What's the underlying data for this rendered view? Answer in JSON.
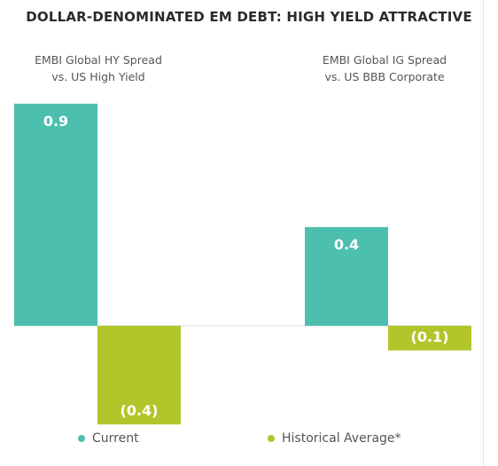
{
  "chart_data": {
    "type": "bar",
    "title": "DOLLAR-DENOMINATED EM DEBT: HIGH YIELD ATTRACTIVE",
    "categories": [
      "EMBI Global HY Spread\nvs. US High Yield",
      "EMBI Global IG Spread\nvs. US BBB Corporate"
    ],
    "series": [
      {
        "name": "Current",
        "values": [
          0.9,
          0.4
        ],
        "labels": [
          "0.9",
          "0.4"
        ],
        "color": "#4dbfae"
      },
      {
        "name": "Historical Average*",
        "values": [
          -0.4,
          -0.1
        ],
        "labels": [
          "(0.4)",
          "(0.1)"
        ],
        "color": "#b2c62c"
      }
    ],
    "ylim": [
      -0.36,
      0.9
    ],
    "grid": false,
    "legend": "bottom"
  }
}
